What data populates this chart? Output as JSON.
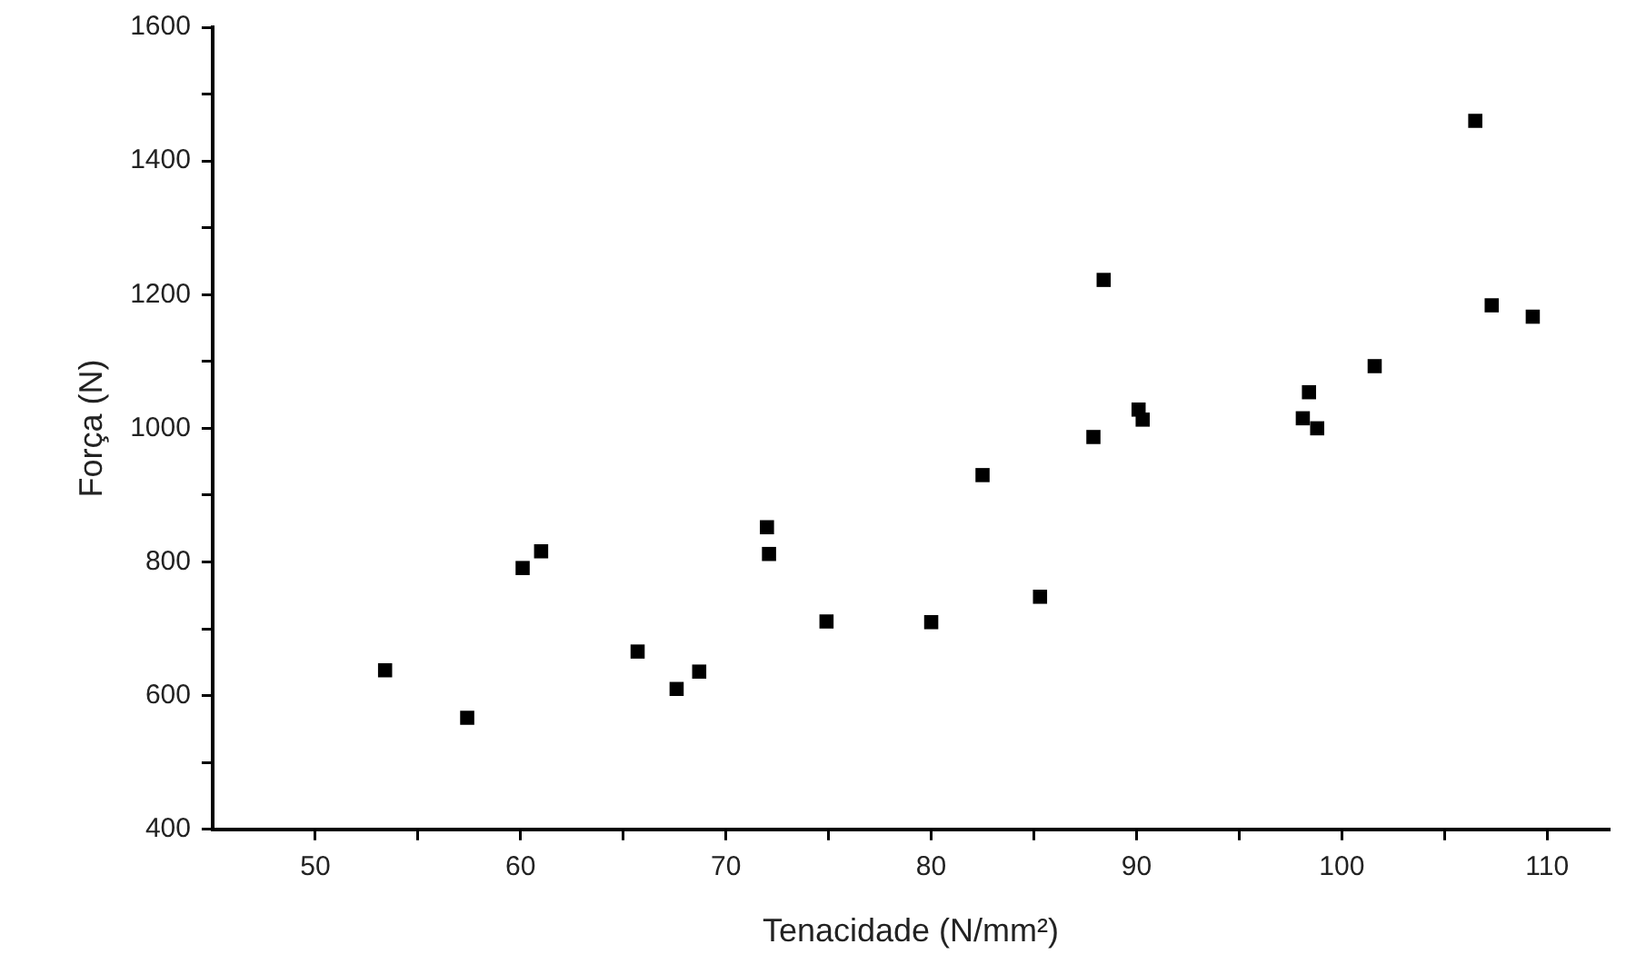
{
  "chart_data": {
    "type": "scatter",
    "xlabel": "Tenacidade (N/mm²)",
    "ylabel": "Força (N)",
    "x": [
      53.4,
      57.4,
      60.1,
      61.0,
      65.7,
      67.6,
      68.7,
      72.0,
      72.1,
      74.9,
      80.0,
      82.5,
      85.3,
      87.9,
      88.4,
      90.1,
      90.3,
      98.1,
      98.4,
      98.8,
      101.6,
      106.5,
      107.3,
      109.3
    ],
    "values": [
      638,
      567,
      791,
      816,
      666,
      610,
      636,
      852,
      812,
      711,
      710,
      930,
      748,
      987,
      1222,
      1028,
      1013,
      1015,
      1054,
      1000,
      1093,
      1460,
      1184,
      1167
    ],
    "color": "#000000",
    "marker": "square",
    "grid": false,
    "xlim": [
      45,
      113
    ],
    "xticks": [
      50,
      {
        "value": 55,
        "label": null
      },
      60,
      {
        "value": 65,
        "label": null
      },
      70,
      {
        "value": 75,
        "label": null
      },
      80,
      {
        "value": 85,
        "label": null
      },
      90,
      {
        "value": 95,
        "label": null
      },
      100,
      {
        "value": 105,
        "label": null
      },
      110
    ],
    "ylim": [
      400,
      1600
    ],
    "yticks": [
      400,
      {
        "value": 500,
        "label": null
      },
      600,
      {
        "value": 700,
        "label": null
      },
      800,
      {
        "value": 900,
        "label": null
      },
      1000,
      {
        "value": 1100,
        "label": null
      },
      1200,
      {
        "value": 1300,
        "label": null
      },
      1400,
      {
        "value": 1500,
        "label": null
      },
      1600
    ]
  }
}
